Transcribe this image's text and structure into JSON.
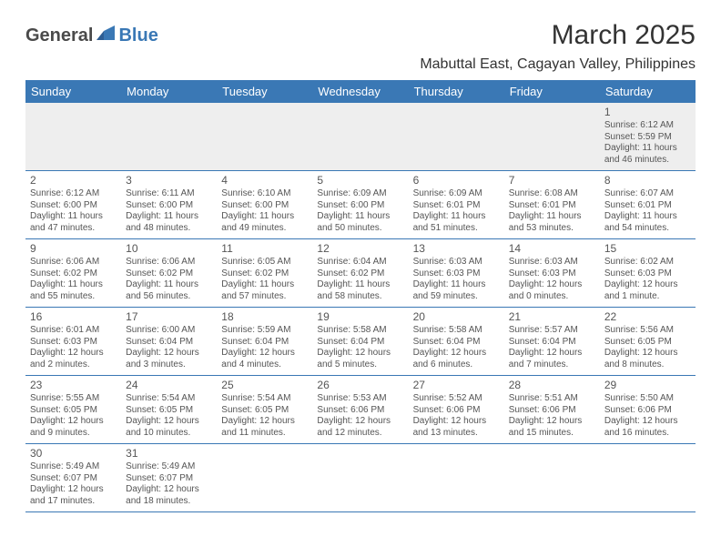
{
  "logo": {
    "general": "General",
    "blue": "Blue"
  },
  "title": "March 2025",
  "location": "Mabuttal East, Cagayan Valley, Philippines",
  "colors": {
    "header_bg": "#3a78b5",
    "header_text": "#ffffff",
    "page_bg": "#ffffff",
    "text": "#555555",
    "title_text": "#333333",
    "rule": "#3a78b5",
    "first_week_bg": "#eeeeee"
  },
  "typography": {
    "title_fontsize": 30,
    "location_fontsize": 16,
    "dayheader_fontsize": 13,
    "daynum_fontsize": 12,
    "body_fontsize": 10
  },
  "day_names": [
    "Sunday",
    "Monday",
    "Tuesday",
    "Wednesday",
    "Thursday",
    "Friday",
    "Saturday"
  ],
  "weeks": [
    [
      null,
      null,
      null,
      null,
      null,
      null,
      {
        "n": "1",
        "sr": "Sunrise: 6:12 AM",
        "ss": "Sunset: 5:59 PM",
        "dl1": "Daylight: 11 hours",
        "dl2": "and 46 minutes."
      }
    ],
    [
      {
        "n": "2",
        "sr": "Sunrise: 6:12 AM",
        "ss": "Sunset: 6:00 PM",
        "dl1": "Daylight: 11 hours",
        "dl2": "and 47 minutes."
      },
      {
        "n": "3",
        "sr": "Sunrise: 6:11 AM",
        "ss": "Sunset: 6:00 PM",
        "dl1": "Daylight: 11 hours",
        "dl2": "and 48 minutes."
      },
      {
        "n": "4",
        "sr": "Sunrise: 6:10 AM",
        "ss": "Sunset: 6:00 PM",
        "dl1": "Daylight: 11 hours",
        "dl2": "and 49 minutes."
      },
      {
        "n": "5",
        "sr": "Sunrise: 6:09 AM",
        "ss": "Sunset: 6:00 PM",
        "dl1": "Daylight: 11 hours",
        "dl2": "and 50 minutes."
      },
      {
        "n": "6",
        "sr": "Sunrise: 6:09 AM",
        "ss": "Sunset: 6:01 PM",
        "dl1": "Daylight: 11 hours",
        "dl2": "and 51 minutes."
      },
      {
        "n": "7",
        "sr": "Sunrise: 6:08 AM",
        "ss": "Sunset: 6:01 PM",
        "dl1": "Daylight: 11 hours",
        "dl2": "and 53 minutes."
      },
      {
        "n": "8",
        "sr": "Sunrise: 6:07 AM",
        "ss": "Sunset: 6:01 PM",
        "dl1": "Daylight: 11 hours",
        "dl2": "and 54 minutes."
      }
    ],
    [
      {
        "n": "9",
        "sr": "Sunrise: 6:06 AM",
        "ss": "Sunset: 6:02 PM",
        "dl1": "Daylight: 11 hours",
        "dl2": "and 55 minutes."
      },
      {
        "n": "10",
        "sr": "Sunrise: 6:06 AM",
        "ss": "Sunset: 6:02 PM",
        "dl1": "Daylight: 11 hours",
        "dl2": "and 56 minutes."
      },
      {
        "n": "11",
        "sr": "Sunrise: 6:05 AM",
        "ss": "Sunset: 6:02 PM",
        "dl1": "Daylight: 11 hours",
        "dl2": "and 57 minutes."
      },
      {
        "n": "12",
        "sr": "Sunrise: 6:04 AM",
        "ss": "Sunset: 6:02 PM",
        "dl1": "Daylight: 11 hours",
        "dl2": "and 58 minutes."
      },
      {
        "n": "13",
        "sr": "Sunrise: 6:03 AM",
        "ss": "Sunset: 6:03 PM",
        "dl1": "Daylight: 11 hours",
        "dl2": "and 59 minutes."
      },
      {
        "n": "14",
        "sr": "Sunrise: 6:03 AM",
        "ss": "Sunset: 6:03 PM",
        "dl1": "Daylight: 12 hours",
        "dl2": "and 0 minutes."
      },
      {
        "n": "15",
        "sr": "Sunrise: 6:02 AM",
        "ss": "Sunset: 6:03 PM",
        "dl1": "Daylight: 12 hours",
        "dl2": "and 1 minute."
      }
    ],
    [
      {
        "n": "16",
        "sr": "Sunrise: 6:01 AM",
        "ss": "Sunset: 6:03 PM",
        "dl1": "Daylight: 12 hours",
        "dl2": "and 2 minutes."
      },
      {
        "n": "17",
        "sr": "Sunrise: 6:00 AM",
        "ss": "Sunset: 6:04 PM",
        "dl1": "Daylight: 12 hours",
        "dl2": "and 3 minutes."
      },
      {
        "n": "18",
        "sr": "Sunrise: 5:59 AM",
        "ss": "Sunset: 6:04 PM",
        "dl1": "Daylight: 12 hours",
        "dl2": "and 4 minutes."
      },
      {
        "n": "19",
        "sr": "Sunrise: 5:58 AM",
        "ss": "Sunset: 6:04 PM",
        "dl1": "Daylight: 12 hours",
        "dl2": "and 5 minutes."
      },
      {
        "n": "20",
        "sr": "Sunrise: 5:58 AM",
        "ss": "Sunset: 6:04 PM",
        "dl1": "Daylight: 12 hours",
        "dl2": "and 6 minutes."
      },
      {
        "n": "21",
        "sr": "Sunrise: 5:57 AM",
        "ss": "Sunset: 6:04 PM",
        "dl1": "Daylight: 12 hours",
        "dl2": "and 7 minutes."
      },
      {
        "n": "22",
        "sr": "Sunrise: 5:56 AM",
        "ss": "Sunset: 6:05 PM",
        "dl1": "Daylight: 12 hours",
        "dl2": "and 8 minutes."
      }
    ],
    [
      {
        "n": "23",
        "sr": "Sunrise: 5:55 AM",
        "ss": "Sunset: 6:05 PM",
        "dl1": "Daylight: 12 hours",
        "dl2": "and 9 minutes."
      },
      {
        "n": "24",
        "sr": "Sunrise: 5:54 AM",
        "ss": "Sunset: 6:05 PM",
        "dl1": "Daylight: 12 hours",
        "dl2": "and 10 minutes."
      },
      {
        "n": "25",
        "sr": "Sunrise: 5:54 AM",
        "ss": "Sunset: 6:05 PM",
        "dl1": "Daylight: 12 hours",
        "dl2": "and 11 minutes."
      },
      {
        "n": "26",
        "sr": "Sunrise: 5:53 AM",
        "ss": "Sunset: 6:06 PM",
        "dl1": "Daylight: 12 hours",
        "dl2": "and 12 minutes."
      },
      {
        "n": "27",
        "sr": "Sunrise: 5:52 AM",
        "ss": "Sunset: 6:06 PM",
        "dl1": "Daylight: 12 hours",
        "dl2": "and 13 minutes."
      },
      {
        "n": "28",
        "sr": "Sunrise: 5:51 AM",
        "ss": "Sunset: 6:06 PM",
        "dl1": "Daylight: 12 hours",
        "dl2": "and 15 minutes."
      },
      {
        "n": "29",
        "sr": "Sunrise: 5:50 AM",
        "ss": "Sunset: 6:06 PM",
        "dl1": "Daylight: 12 hours",
        "dl2": "and 16 minutes."
      }
    ],
    [
      {
        "n": "30",
        "sr": "Sunrise: 5:49 AM",
        "ss": "Sunset: 6:07 PM",
        "dl1": "Daylight: 12 hours",
        "dl2": "and 17 minutes."
      },
      {
        "n": "31",
        "sr": "Sunrise: 5:49 AM",
        "ss": "Sunset: 6:07 PM",
        "dl1": "Daylight: 12 hours",
        "dl2": "and 18 minutes."
      },
      null,
      null,
      null,
      null,
      null
    ]
  ]
}
